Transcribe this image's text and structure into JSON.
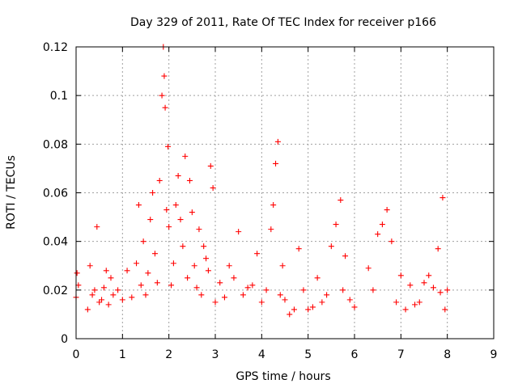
{
  "chart_data": {
    "type": "scatter",
    "title": "Day 329 of 2011, Rate Of TEC Index for receiver p166",
    "xlabel": "GPS time / hours",
    "ylabel": "ROTI / TECUs",
    "xlim": [
      0,
      9
    ],
    "ylim": [
      0,
      0.12
    ],
    "x_ticks": [
      "0",
      "1",
      "2",
      "3",
      "4",
      "5",
      "6",
      "7",
      "8",
      "9"
    ],
    "y_ticks": [
      "0",
      "0.02",
      "0.04",
      "0.06",
      "0.08",
      "0.1",
      "0.12"
    ],
    "grid": true,
    "marker": "+",
    "marker_color": "#ff0000",
    "series": [
      {
        "x": [
          0.0,
          0.02,
          0.05,
          0.25,
          0.3,
          0.35,
          0.4,
          0.45,
          0.5,
          0.55,
          0.6,
          0.65,
          0.7,
          0.75,
          0.8,
          0.9,
          1.0,
          1.1,
          1.2,
          1.3,
          1.35,
          1.4,
          1.45,
          1.5,
          1.55,
          1.6,
          1.65,
          1.7,
          1.75,
          1.8,
          1.85,
          1.88,
          1.9,
          1.92,
          1.95,
          1.98,
          2.0,
          2.05,
          2.1,
          2.15,
          2.2,
          2.25,
          2.3,
          2.35,
          2.4,
          2.45,
          2.5,
          2.55,
          2.6,
          2.65,
          2.7,
          2.75,
          2.8,
          2.85,
          2.9,
          2.95,
          3.0,
          3.1,
          3.2,
          3.3,
          3.4,
          3.5,
          3.6,
          3.7,
          3.8,
          3.9,
          4.0,
          4.1,
          4.2,
          4.25,
          4.3,
          4.35,
          4.4,
          4.45,
          4.5,
          4.6,
          4.7,
          4.8,
          4.9,
          5.0,
          5.1,
          5.2,
          5.3,
          5.4,
          5.5,
          5.6,
          5.7,
          5.75,
          5.8,
          5.9,
          6.0,
          6.3,
          6.4,
          6.5,
          6.6,
          6.7,
          6.8,
          6.9,
          7.0,
          7.1,
          7.2,
          7.3,
          7.4,
          7.5,
          7.6,
          7.7,
          7.8,
          7.85,
          7.9,
          7.95,
          8.0
        ],
        "y": [
          0.017,
          0.027,
          0.022,
          0.012,
          0.03,
          0.018,
          0.02,
          0.046,
          0.015,
          0.016,
          0.021,
          0.028,
          0.014,
          0.025,
          0.018,
          0.02,
          0.016,
          0.028,
          0.017,
          0.031,
          0.055,
          0.022,
          0.04,
          0.018,
          0.027,
          0.049,
          0.06,
          0.035,
          0.023,
          0.065,
          0.1,
          0.12,
          0.108,
          0.095,
          0.053,
          0.079,
          0.046,
          0.022,
          0.031,
          0.055,
          0.067,
          0.049,
          0.038,
          0.075,
          0.025,
          0.065,
          0.052,
          0.03,
          0.021,
          0.045,
          0.018,
          0.038,
          0.033,
          0.028,
          0.071,
          0.062,
          0.015,
          0.023,
          0.017,
          0.03,
          0.025,
          0.044,
          0.018,
          0.021,
          0.022,
          0.035,
          0.015,
          0.02,
          0.045,
          0.055,
          0.072,
          0.081,
          0.018,
          0.03,
          0.016,
          0.01,
          0.012,
          0.037,
          0.02,
          0.012,
          0.013,
          0.025,
          0.015,
          0.018,
          0.038,
          0.047,
          0.057,
          0.02,
          0.034,
          0.016,
          0.013,
          0.029,
          0.02,
          0.043,
          0.047,
          0.053,
          0.04,
          0.015,
          0.026,
          0.012,
          0.022,
          0.014,
          0.015,
          0.023,
          0.026,
          0.021,
          0.037,
          0.019,
          0.058,
          0.012,
          0.02
        ]
      }
    ]
  }
}
